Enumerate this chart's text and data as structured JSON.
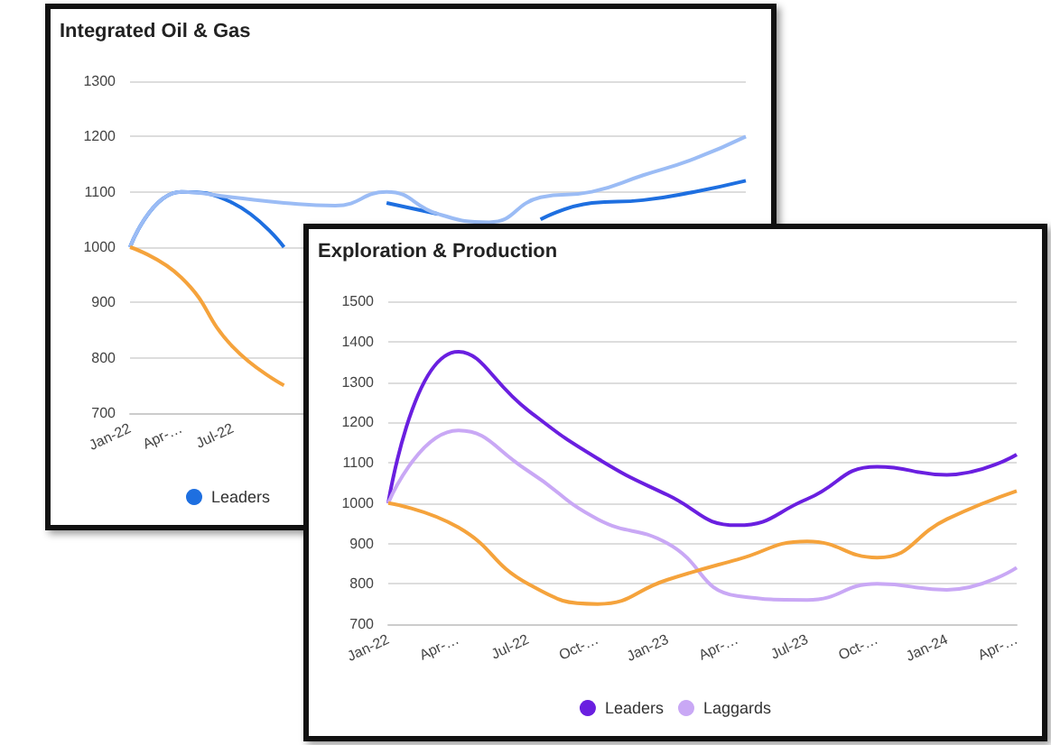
{
  "chart_data": [
    {
      "type": "line",
      "title": "Integrated Oil & Gas",
      "categories": [
        "Jan-22",
        "Apr-…",
        "Jul-22",
        null,
        null,
        null,
        null,
        null,
        null,
        null,
        null,
        null,
        null
      ],
      "series": [
        {
          "name": "Leaders",
          "color": "#1e6fe0",
          "values": [
            1000,
            1100,
            1080,
            1000,
            null,
            1080,
            1060,
            null,
            1050,
            1080,
            1085,
            1100,
            1120
          ]
        },
        {
          "color": "#9bbcf5",
          "values": [
            1000,
            1100,
            1090,
            1080,
            1075,
            1100,
            1060,
            1045,
            1090,
            1100,
            1130,
            1160,
            1200
          ]
        },
        {
          "color": "#f5a33c",
          "values": [
            1000,
            945,
            820,
            750,
            null,
            null,
            null,
            null,
            null,
            null,
            null,
            null,
            null
          ]
        }
      ],
      "ylim": [
        700,
        1300
      ],
      "yticks": [
        700,
        800,
        900,
        1000,
        1100,
        1200,
        1300
      ],
      "grid": "y",
      "legend": "bottom",
      "marker": "none"
    },
    {
      "type": "line",
      "title": "Exploration & Production",
      "categories": [
        "Jan-22",
        "Apr-…",
        "Jul-22",
        "Oct-…",
        "Jan-23",
        "Apr-…",
        "Jul-23",
        "Oct-…",
        "Jan-24",
        "Apr-…"
      ],
      "series": [
        {
          "name": "Leaders",
          "color": "#6a1fe0",
          "values": [
            1000,
            1375,
            1230,
            1110,
            1020,
            945,
            1010,
            1090,
            1070,
            1120
          ]
        },
        {
          "name": "Laggards",
          "color": "#c9a8f5",
          "values": [
            1000,
            1180,
            1080,
            960,
            900,
            770,
            760,
            800,
            785,
            840
          ]
        },
        {
          "color": "#f5a33c",
          "values": [
            1000,
            940,
            800,
            750,
            810,
            860,
            905,
            865,
            960,
            1030
          ]
        }
      ],
      "ylim": [
        700,
        1500
      ],
      "yticks": [
        700,
        800,
        900,
        1000,
        1100,
        1200,
        1300,
        1400,
        1500
      ],
      "grid": "y",
      "legend": "bottom",
      "marker": "none"
    }
  ]
}
